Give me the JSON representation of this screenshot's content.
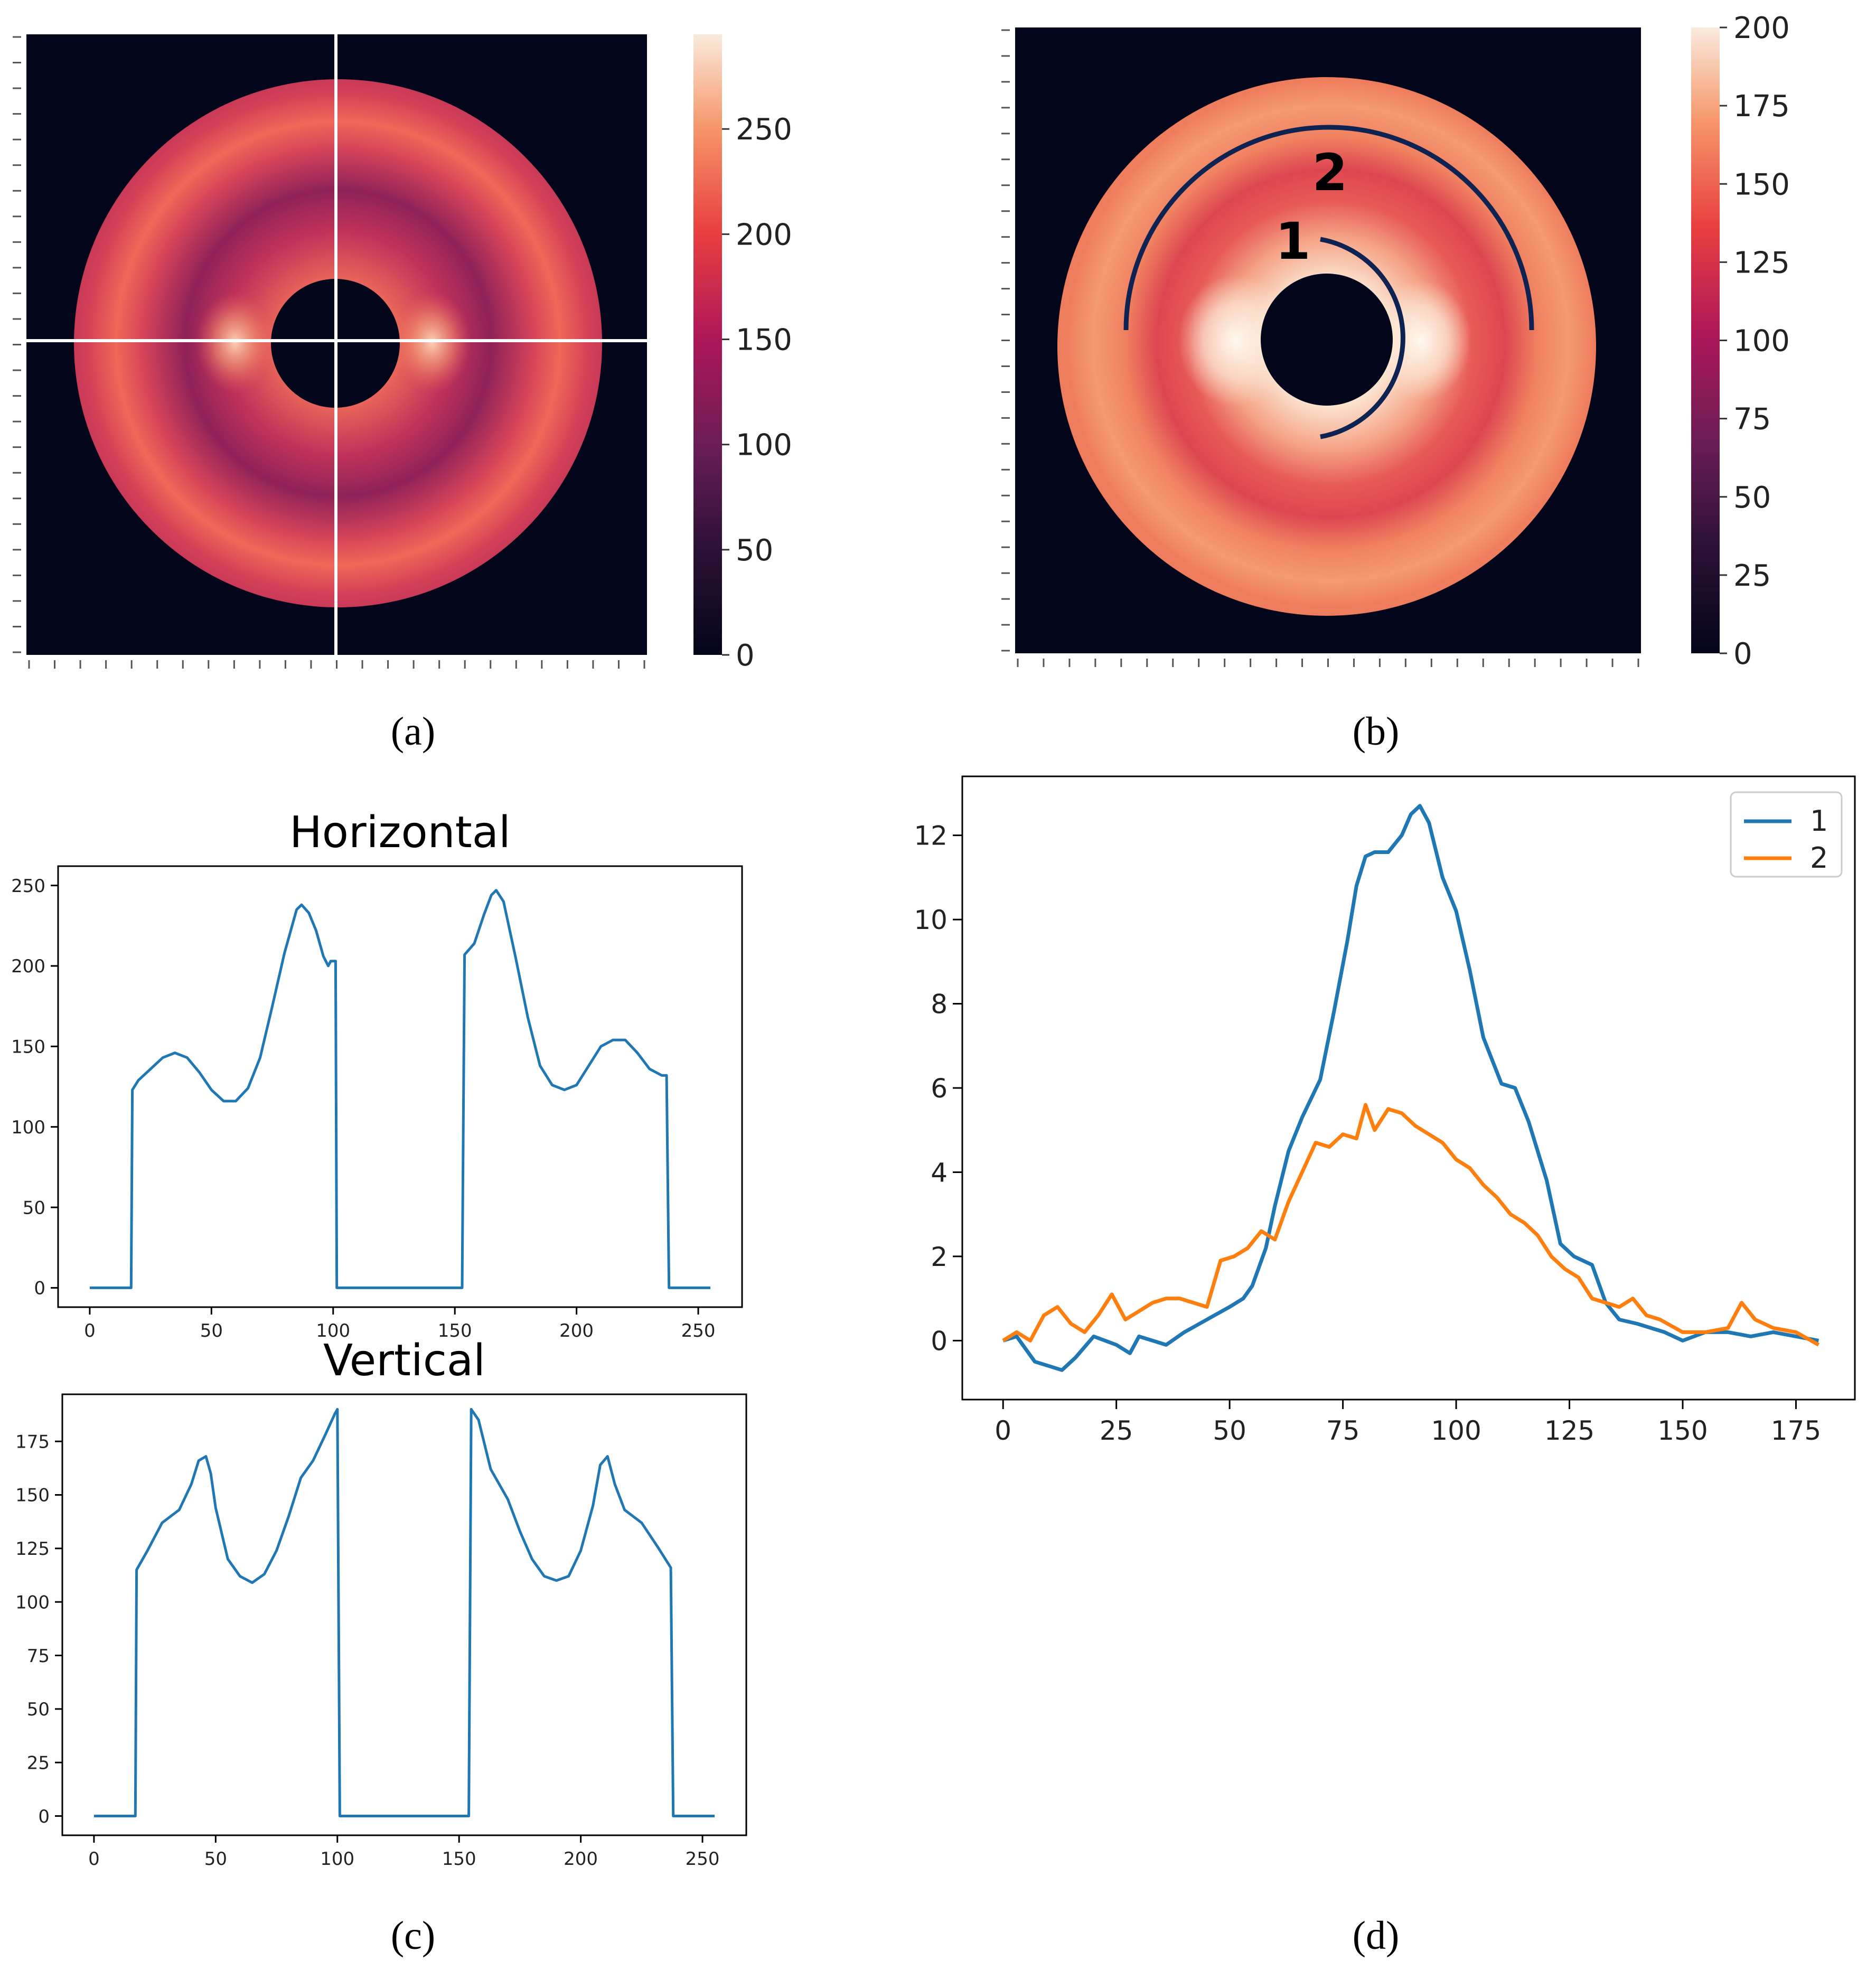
{
  "colors": {
    "background": "#03051a",
    "inner_ring": "#fcd9c3",
    "outer_ring": "#f2795a",
    "middle_band": "#d43f52",
    "crosshair": "#ffffff",
    "arc": "#0f2352",
    "series_1": "#1f77b4",
    "series_2": "#ff7f0e",
    "axis": "#000000"
  },
  "panel_a": {
    "label": "(a)",
    "colorbar_ticks": [
      "0",
      "50",
      "100",
      "150",
      "200",
      "250"
    ],
    "colorbar_range": [
      0,
      295
    ]
  },
  "panel_b": {
    "label": "(b)",
    "arc_labels": [
      "1",
      "2"
    ],
    "colorbar_ticks": [
      "0",
      "25",
      "50",
      "75",
      "100",
      "125",
      "150",
      "175",
      "200"
    ],
    "colorbar_range": [
      0,
      200
    ]
  },
  "panel_c": {
    "label": "(c)"
  },
  "panel_d": {
    "label": "(d)"
  },
  "chart_data": [
    {
      "id": "horizontal",
      "type": "line",
      "title": "Horizontal",
      "xlim": [
        -13,
        268
      ],
      "ylim": [
        -12,
        262
      ],
      "xticks": [
        0,
        50,
        100,
        150,
        200,
        250
      ],
      "yticks": [
        0,
        50,
        100,
        150,
        200,
        250
      ],
      "series": [
        {
          "name": "horizontal",
          "color": "#1f77b4",
          "x": [
            0,
            17,
            17.5,
            20,
            25,
            30,
            35,
            40,
            45,
            50,
            55,
            60,
            65,
            70,
            75,
            80,
            85,
            87,
            90,
            93,
            96,
            98,
            99,
            101,
            101.5,
            153,
            154,
            158,
            162,
            165,
            167,
            170,
            175,
            180,
            185,
            190,
            195,
            200,
            205,
            210,
            215,
            220,
            225,
            230,
            235,
            237,
            238,
            255
          ],
          "y": [
            0,
            0,
            123,
            129,
            136,
            143,
            146,
            143,
            134,
            123,
            116,
            116,
            124,
            143,
            175,
            208,
            235,
            238,
            233,
            222,
            206,
            200,
            203,
            203,
            0,
            0,
            207,
            214,
            232,
            244,
            247,
            240,
            205,
            168,
            138,
            126,
            123,
            126,
            138,
            150,
            154,
            154,
            146,
            136,
            132,
            132,
            0,
            0
          ]
        }
      ]
    },
    {
      "id": "vertical",
      "type": "line",
      "title": "Vertical",
      "xlim": [
        -13,
        268
      ],
      "ylim": [
        -9,
        197
      ],
      "xticks": [
        0,
        50,
        100,
        150,
        200,
        250
      ],
      "yticks": [
        0,
        25,
        50,
        75,
        100,
        125,
        150,
        175
      ],
      "series": [
        {
          "name": "vertical",
          "color": "#1f77b4",
          "x": [
            0,
            17,
            17.5,
            22,
            28,
            35,
            40,
            43,
            46,
            48,
            50,
            55,
            60,
            65,
            70,
            75,
            80,
            85,
            90,
            95,
            99,
            100,
            101,
            154,
            155,
            158,
            163,
            170,
            175,
            180,
            185,
            190,
            195,
            200,
            205,
            208,
            211,
            214,
            218,
            225,
            232,
            237,
            238,
            255
          ],
          "y": [
            0,
            0,
            115,
            124,
            137,
            143,
            155,
            166,
            168,
            160,
            144,
            120,
            112,
            109,
            113,
            124,
            140,
            158,
            166,
            178,
            188,
            190,
            0,
            0,
            190,
            185,
            162,
            148,
            133,
            120,
            112,
            110,
            112,
            124,
            145,
            164,
            168,
            155,
            143,
            137,
            125,
            116,
            0,
            0
          ]
        }
      ]
    },
    {
      "id": "arc_profiles",
      "type": "line",
      "title": "",
      "xlim": [
        -9,
        188
      ],
      "ylim": [
        -1.4,
        13.4
      ],
      "xticks": [
        0,
        25,
        50,
        75,
        100,
        125,
        150,
        175
      ],
      "yticks": [
        0,
        2,
        4,
        6,
        8,
        10,
        12
      ],
      "legend": "top-right",
      "series": [
        {
          "name": "1",
          "color": "#1f77b4",
          "x": [
            0,
            3,
            5,
            7,
            10,
            13,
            16,
            20,
            25,
            28,
            30,
            33,
            36,
            40,
            45,
            50,
            53,
            55,
            58,
            60,
            63,
            66,
            70,
            73,
            76,
            78,
            80,
            82,
            85,
            88,
            90,
            92,
            94,
            97,
            100,
            103,
            106,
            110,
            113,
            116,
            120,
            123,
            126,
            130,
            133,
            136,
            140,
            143,
            146,
            150,
            155,
            160,
            165,
            170,
            175,
            180
          ],
          "y": [
            0,
            0.1,
            -0.2,
            -0.5,
            -0.6,
            -0.7,
            -0.4,
            0.1,
            -0.1,
            -0.3,
            0.1,
            0,
            -0.1,
            0.2,
            0.5,
            0.8,
            1.0,
            1.3,
            2.2,
            3.2,
            4.5,
            5.3,
            6.2,
            7.8,
            9.5,
            10.8,
            11.5,
            11.6,
            11.6,
            12.0,
            12.5,
            12.7,
            12.3,
            11.0,
            10.2,
            8.8,
            7.2,
            6.1,
            6.0,
            5.2,
            3.8,
            2.3,
            2.0,
            1.8,
            0.9,
            0.5,
            0.4,
            0.3,
            0.2,
            0.0,
            0.2,
            0.2,
            0.1,
            0.2,
            0.1,
            0.0
          ]
        },
        {
          "name": "2",
          "color": "#ff7f0e",
          "x": [
            0,
            3,
            6,
            9,
            12,
            15,
            18,
            21,
            24,
            27,
            30,
            33,
            36,
            39,
            42,
            45,
            48,
            51,
            54,
            57,
            60,
            63,
            66,
            69,
            72,
            75,
            78,
            80,
            82,
            85,
            88,
            91,
            94,
            97,
            100,
            103,
            106,
            109,
            112,
            115,
            118,
            121,
            124,
            127,
            130,
            133,
            136,
            139,
            142,
            145,
            150,
            155,
            160,
            163,
            166,
            170,
            175,
            180
          ],
          "y": [
            0,
            0.2,
            0.0,
            0.6,
            0.8,
            0.4,
            0.2,
            0.6,
            1.1,
            0.5,
            0.7,
            0.9,
            1.0,
            1.0,
            0.9,
            0.8,
            1.9,
            2.0,
            2.2,
            2.6,
            2.4,
            3.3,
            4.0,
            4.7,
            4.6,
            4.9,
            4.8,
            5.6,
            5.0,
            5.5,
            5.4,
            5.1,
            4.9,
            4.7,
            4.3,
            4.1,
            3.7,
            3.4,
            3.0,
            2.8,
            2.5,
            2.0,
            1.7,
            1.5,
            1.0,
            0.9,
            0.8,
            1.0,
            0.6,
            0.5,
            0.2,
            0.2,
            0.3,
            0.9,
            0.5,
            0.3,
            0.2,
            -0.1
          ]
        }
      ]
    }
  ]
}
